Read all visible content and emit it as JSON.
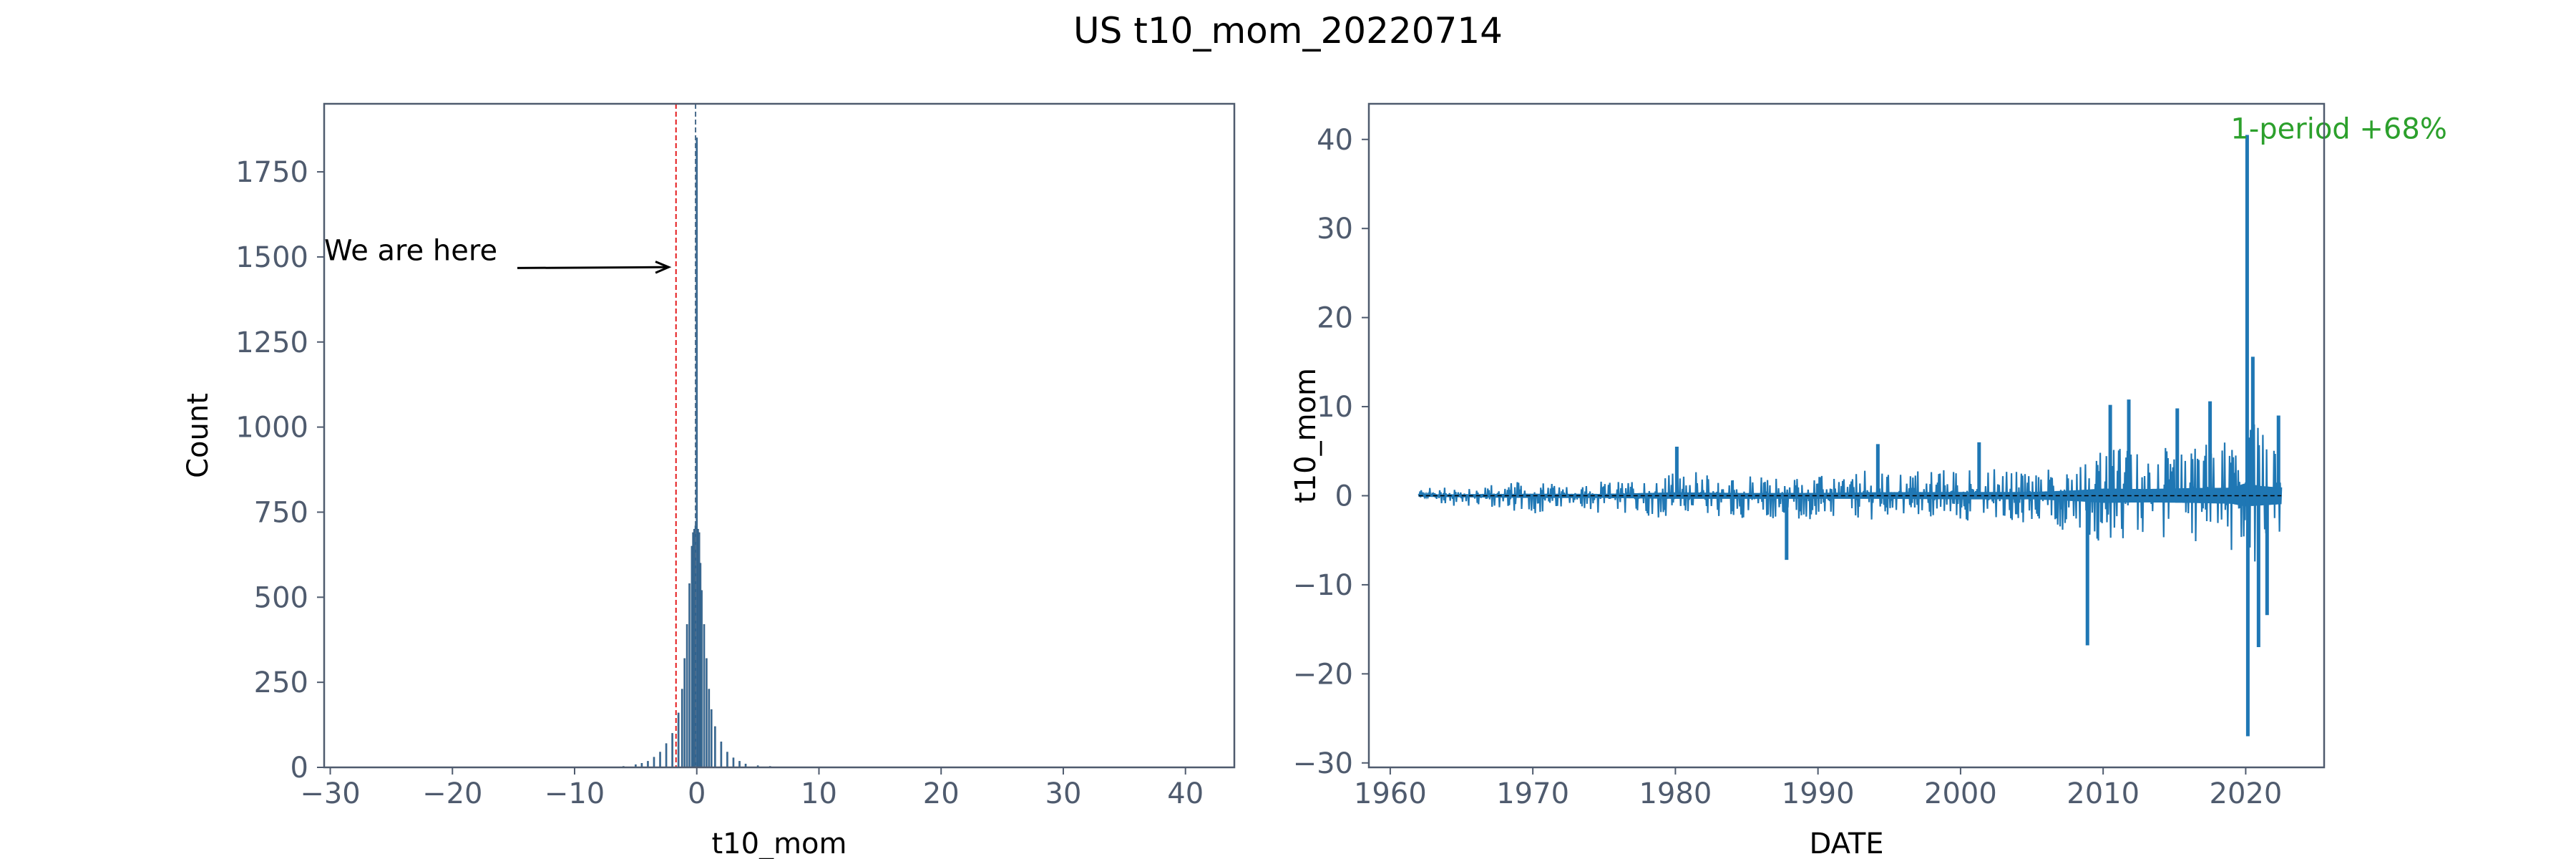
{
  "suptitle": "US t10_mom_20220714",
  "chart_data": [
    {
      "type": "bar",
      "subtype": "histogram",
      "xlabel": "t10_mom",
      "ylabel": "Count",
      "xlim": [
        -30.5,
        44
      ],
      "ylim": [
        0,
        1950
      ],
      "xticks": [
        -30,
        -20,
        -10,
        0,
        10,
        20,
        30,
        40
      ],
      "yticks": [
        0,
        250,
        500,
        750,
        1000,
        1250,
        1500,
        1750
      ],
      "bin_width": 0.1,
      "bins": {
        "centers": [
          -6.0,
          -5.0,
          -4.5,
          -4.0,
          -3.5,
          -3.0,
          -2.5,
          -2.0,
          -1.5,
          -1.2,
          -1.0,
          -0.8,
          -0.6,
          -0.4,
          -0.3,
          -0.2,
          -0.1,
          0.0,
          0.1,
          0.2,
          0.3,
          0.4,
          0.6,
          0.8,
          1.0,
          1.2,
          1.5,
          2.0,
          2.5,
          3.0,
          3.5,
          4.0,
          5.0,
          6.0,
          8.0
        ],
        "counts": [
          3,
          8,
          12,
          18,
          30,
          45,
          70,
          100,
          160,
          230,
          320,
          420,
          540,
          650,
          690,
          700,
          710,
          1850,
          700,
          690,
          600,
          520,
          420,
          320,
          230,
          170,
          120,
          75,
          45,
          28,
          18,
          10,
          5,
          3,
          1
        ]
      },
      "vlines": [
        {
          "x": -1.7,
          "color": "#e41a1c",
          "style": "dashed"
        },
        {
          "x": -0.1,
          "color": "#4a6c8c",
          "style": "dashed"
        }
      ],
      "annotations": [
        {
          "text": "We are here",
          "x": -30.5,
          "y": 1520,
          "arrow_to": {
            "x": -2.3,
            "y": 1470
          }
        }
      ],
      "color": "#3a6e9a"
    },
    {
      "type": "line",
      "xlabel": "DATE",
      "ylabel": "t10_mom",
      "xlim": [
        1958.5,
        2025.5
      ],
      "ylim": [
        -30.5,
        44
      ],
      "xticks": [
        1960,
        1970,
        1980,
        1990,
        2000,
        2010,
        2020
      ],
      "yticks": [
        -30,
        -20,
        -10,
        0,
        10,
        20,
        30,
        40
      ],
      "hline": {
        "y": 0,
        "color": "#000000",
        "style": "dashed"
      },
      "annotation": {
        "text": "1-period +68%",
        "x": 2020.2,
        "y": 40.5,
        "color": "#2ca02c"
      },
      "series": [
        {
          "color": "#1f77b4",
          "envelope": {
            "x": [
              1962,
              1965,
              1970,
              1975,
              1980,
              1985,
              1990,
              1995,
              2000,
              2005,
              2008,
              2010,
              2013,
              2016,
              2019,
              2020,
              2021,
              2022.5
            ],
            "upper": [
              1.2,
              1.6,
              2.2,
              2.0,
              3.8,
              3.0,
              3.2,
              4.0,
              4.2,
              4.2,
              6.0,
              8.0,
              7.5,
              8.5,
              9.0,
              14.0,
              11.0,
              9.0
            ],
            "lower": [
              -1.0,
              -1.6,
              -2.5,
              -2.5,
              -3.5,
              -3.5,
              -3.5,
              -3.5,
              -4.0,
              -4.0,
              -6.0,
              -8.0,
              -7.5,
              -8.0,
              -9.0,
              -12.0,
              -11.0,
              -9.5
            ]
          },
          "spikes": [
            {
              "x": 1980.1,
              "y": 5.5
            },
            {
              "x": 1987.8,
              "y": -7.2
            },
            {
              "x": 1994.2,
              "y": 5.8
            },
            {
              "x": 2001.3,
              "y": 6.0
            },
            {
              "x": 2008.9,
              "y": -16.8
            },
            {
              "x": 2010.5,
              "y": 10.2
            },
            {
              "x": 2011.8,
              "y": 10.8
            },
            {
              "x": 2015.2,
              "y": 9.8
            },
            {
              "x": 2017.5,
              "y": 10.6
            },
            {
              "x": 2020.1,
              "y": 40.5
            },
            {
              "x": 2020.15,
              "y": -27.0
            },
            {
              "x": 2020.5,
              "y": 15.6
            },
            {
              "x": 2020.9,
              "y": -17.0
            },
            {
              "x": 2021.5,
              "y": -13.4
            },
            {
              "x": 2022.3,
              "y": 9.0
            }
          ]
        }
      ]
    }
  ]
}
